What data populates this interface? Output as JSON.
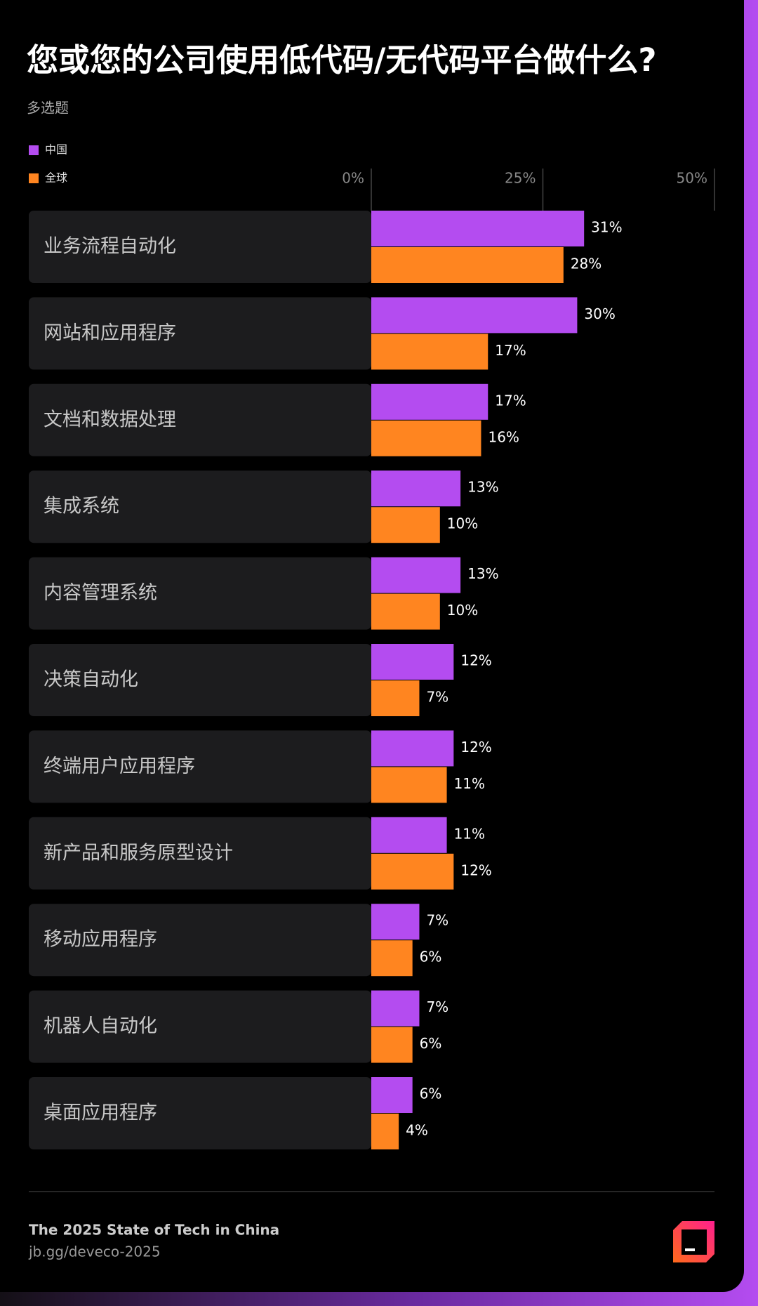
{
  "chart_data": {
    "type": "hbar",
    "title": "您或您的公司使用低代码/无代码平台做什么?",
    "subtitle": "多选题",
    "categories": [
      "业务流程自动化",
      "网站和应用程序",
      "文档和数据处理",
      "集成系统",
      "内容管理系统",
      "决策自动化",
      "终端用户应用程序",
      "新产品和服务原型设计",
      "移动应用程序",
      "机器人自动化",
      "桌面应用程序"
    ],
    "series": [
      {
        "name": "中国",
        "color": "#b44cf0",
        "values": [
          31,
          30,
          17,
          13,
          13,
          12,
          12,
          11,
          7,
          7,
          6
        ],
        "value_labels": [
          "31%",
          "30%",
          "17%",
          "13%",
          "13%",
          "12%",
          "12%",
          "11%",
          "7%",
          "7%",
          "6%"
        ]
      },
      {
        "name": "全球",
        "color": "#ff8520",
        "values": [
          28,
          17,
          16,
          10,
          10,
          7,
          11,
          12,
          6,
          6,
          4
        ],
        "value_labels": [
          "28%",
          "17%",
          "16%",
          "10%",
          "10%",
          "7%",
          "11%",
          "12%",
          "6%",
          "6%",
          "4%"
        ]
      }
    ],
    "xlim": [
      0,
      50
    ],
    "xticks": [
      {
        "value": 0,
        "label": "0%"
      },
      {
        "value": 25,
        "label": "25%"
      },
      {
        "value": 50,
        "label": "50%"
      }
    ],
    "grid": true,
    "legend": "top-left"
  },
  "footer": {
    "source": "The 2025 State of Tech in China",
    "url": "jb.gg/deveco-2025"
  }
}
